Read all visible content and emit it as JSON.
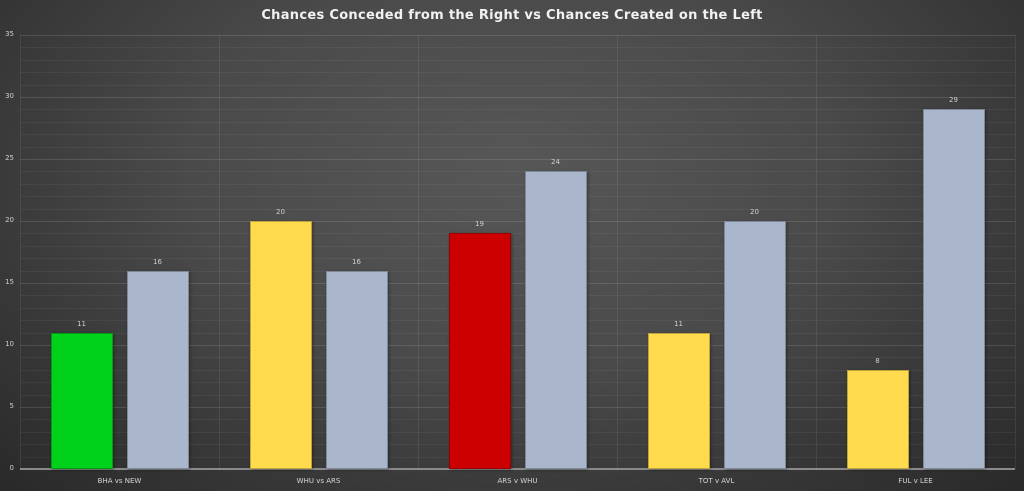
{
  "chart_data": {
    "type": "bar",
    "title": "Chances Conceded from the Right vs Chances Created on the Left",
    "xlabel": "",
    "ylabel": "",
    "ylim": [
      0,
      35
    ],
    "yticks": [
      "0",
      "5",
      "10",
      "15",
      "20",
      "25",
      "30",
      "35"
    ],
    "grid": true,
    "legend": null,
    "categories": [
      "BHA vs NEW",
      "WHU vs ARS",
      "ARS v WHU",
      "TOT v AVL",
      "FUL v LEE"
    ],
    "series": [
      {
        "name": "Chances Conceded from the Right",
        "values": [
          11,
          20,
          19,
          11,
          8
        ],
        "colors": [
          "#00d11a",
          "#ffdb4d",
          "#cc0000",
          "#ffdb4d",
          "#ffdb4d"
        ]
      },
      {
        "name": "Chances Created on the Left",
        "values": [
          16,
          16,
          24,
          20,
          29
        ],
        "colors": [
          "#aab6cc",
          "#aab6cc",
          "#aab6cc",
          "#aab6cc",
          "#aab6cc"
        ]
      }
    ],
    "data_labels": {
      "s0": [
        "11",
        "20",
        "19",
        "11",
        "8"
      ],
      "s1": [
        "16",
        "16",
        "24",
        "20",
        "29"
      ]
    }
  }
}
